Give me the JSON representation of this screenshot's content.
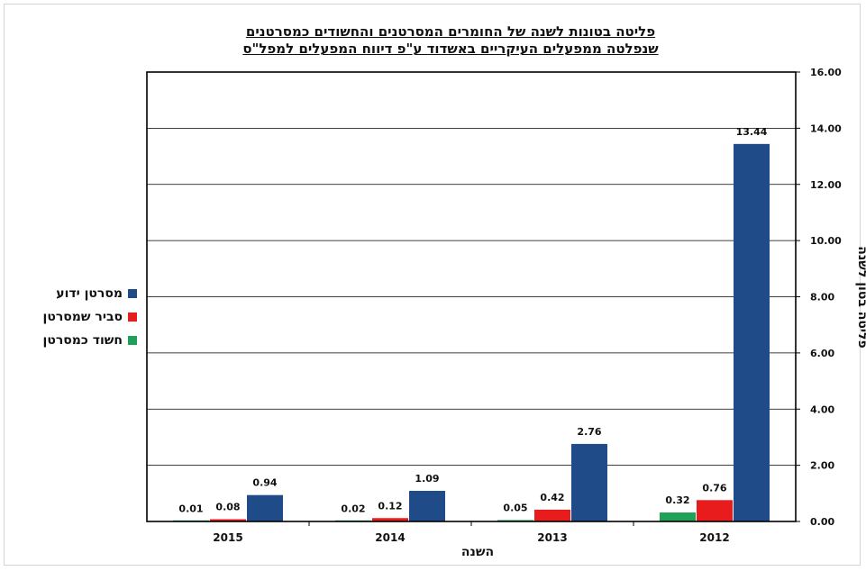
{
  "chart_data": {
    "type": "bar",
    "title_line1": "פליטה בטונות לשנה של החומרים המסרטנים והחשודים כמסרטנים",
    "title_line2": "שנפלטה ממפעלים העיקריים באשדוד ע\"פ דיווח המפעלים למפל\"ס",
    "xlabel": "השנה",
    "ylabel": "פליטה בטון לשנה",
    "categories": [
      "2015",
      "2014",
      "2013",
      "2012"
    ],
    "ylim": [
      0,
      16
    ],
    "yticks": [
      "0.00",
      "2.00",
      "4.00",
      "6.00",
      "8.00",
      "10.00",
      "12.00",
      "14.00",
      "16.00"
    ],
    "grid": true,
    "legend_position": "left",
    "y_axis_side": "right",
    "series": [
      {
        "name": "חשוד כמסרטן",
        "color": "#1fa15a",
        "values": [
          0.01,
          0.02,
          0.05,
          0.32
        ],
        "labels": [
          "0.01",
          "0.02",
          "0.05",
          "0.32"
        ]
      },
      {
        "name": "סביר שמסרטן",
        "color": "#e81c1c",
        "values": [
          0.08,
          0.12,
          0.42,
          0.76
        ],
        "labels": [
          "0.08",
          "0.12",
          "0.42",
          "0.76"
        ]
      },
      {
        "name": "מסרטן ידוע",
        "color": "#1f4b88",
        "values": [
          0.94,
          1.09,
          2.76,
          13.44
        ],
        "labels": [
          "0.94",
          "1.09",
          "2.76",
          "13.44"
        ]
      }
    ],
    "legend_order": [
      2,
      1,
      0
    ]
  }
}
